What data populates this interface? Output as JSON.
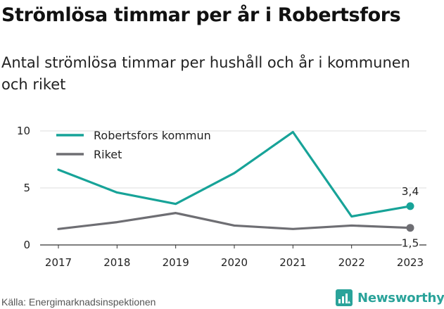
{
  "title": "Strömlösa timmar per år i Robertsfors",
  "subtitle": "Antal strömlösa timmar per hushåll och år i kommunen och riket",
  "source": "Källa: Energimarknadsinspektionen",
  "brand": {
    "name": "Newsworthy",
    "icon": "newsworthy-logo-icon"
  },
  "colors": {
    "accent": "#17a398",
    "secondary": "#6e6e73",
    "grid": "#dddddd"
  },
  "chart_data": {
    "type": "line",
    "x": [
      "2017",
      "2018",
      "2019",
      "2020",
      "2021",
      "2022",
      "2023"
    ],
    "yticks": [
      "0",
      "5",
      "10"
    ],
    "ylim": [
      0,
      10
    ],
    "grid": true,
    "legend_position": "top-left",
    "series": [
      {
        "name": "Robertsfors kommun",
        "color": "#17a398",
        "values": [
          6.6,
          4.6,
          3.6,
          6.3,
          9.9,
          2.5,
          3.4
        ],
        "end_label": "3,4"
      },
      {
        "name": "Riket",
        "color": "#6e6e73",
        "values": [
          1.4,
          2.0,
          2.8,
          1.7,
          1.4,
          1.7,
          1.5
        ],
        "end_label": "1,5"
      }
    ]
  }
}
